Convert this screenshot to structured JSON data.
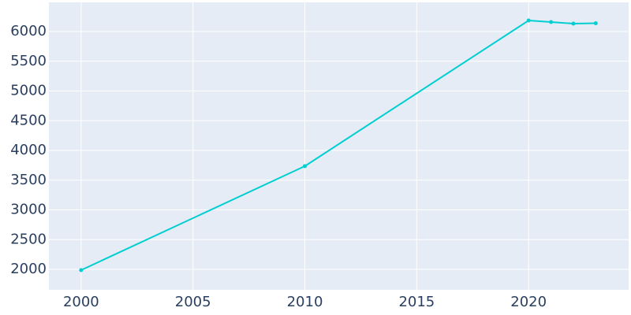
{
  "chart_data": {
    "type": "line",
    "x": [
      2000,
      2010,
      2020,
      2021,
      2022,
      2023
    ],
    "series": [
      {
        "color": "#00ced1",
        "values": [
          1987,
          3736,
          6185,
          6159,
          6132,
          6139
        ]
      }
    ],
    "xlim": [
      1998.56,
      2024.47
    ],
    "xticks": [
      2000,
      2005,
      2010,
      2015,
      2020
    ],
    "ylim": [
      1656,
      6490
    ],
    "yticks": [
      2000,
      2500,
      3000,
      3500,
      4000,
      4500,
      5000,
      5500,
      6000
    ],
    "grid": true
  }
}
